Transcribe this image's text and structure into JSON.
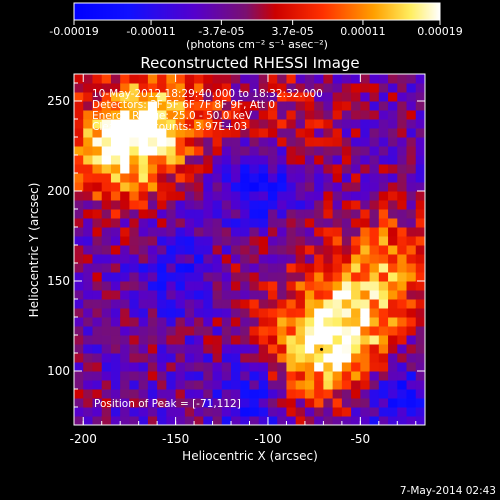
{
  "colorbar": {
    "tick_labels": [
      "-0.00019",
      "-0.00011",
      "-3.7e-05",
      "3.7e-05",
      "0.00011",
      "0.00019"
    ],
    "tick_values": [
      -0.00019,
      -0.00011,
      -3.7e-05,
      3.7e-05,
      0.00011,
      0.00019
    ],
    "range": [
      -0.00019,
      0.00019
    ],
    "units_label": "(photons cm⁻² s⁻¹ asec⁻²)"
  },
  "chart_data": {
    "type": "heatmap",
    "title": "Reconstructed RHESSI Image",
    "xlabel": "Heliocentric X (arcsec)",
    "ylabel": "Heliocentric Y (arcsec)",
    "xlim": [
      -205,
      -15
    ],
    "ylim": [
      70,
      265
    ],
    "x_ticks": [
      -200,
      -150,
      -100,
      -50
    ],
    "y_ticks": [
      100,
      150,
      200,
      250
    ],
    "annotations": [
      "10-May-2012 18:29:40.000 to 18:32:32.000",
      "Detectors: 3F 5F 6F 7F 8F 9F, Att 0",
      "Energy Range: 25.0 - 50.0 keV",
      "Clean     Total counts: 3.97E+03"
    ],
    "peak_label": "Position of Peak = [-71,112]",
    "peak_position": [
      -71,
      112
    ],
    "colormap": "blue-purple-red-yellow-white",
    "bright_regions": [
      {
        "center": [
          -185,
          220
        ],
        "value": 0.00017
      },
      {
        "center": [
          -160,
          240
        ],
        "value": 0.00015
      },
      {
        "center": [
          -60,
          120
        ],
        "value": 0.00016
      },
      {
        "center": [
          -80,
          105
        ],
        "value": 0.00013
      },
      {
        "center": [
          -40,
          160
        ],
        "value": 0.00012
      },
      {
        "center": [
          -95,
          235
        ],
        "value": 8e-05
      },
      {
        "center": [
          -125,
          150
        ],
        "value": 6e-05
      }
    ],
    "dark_regions": [
      {
        "center": [
          -110,
          205
        ],
        "value": -0.00012
      },
      {
        "center": [
          -145,
          150
        ],
        "value": -0.0001
      },
      {
        "center": [
          -110,
          85
        ],
        "value": -9e-05
      },
      {
        "center": [
          -30,
          85
        ],
        "value": -0.0001
      }
    ]
  },
  "footer": {
    "timestamp": "7-May-2014 02:43"
  }
}
